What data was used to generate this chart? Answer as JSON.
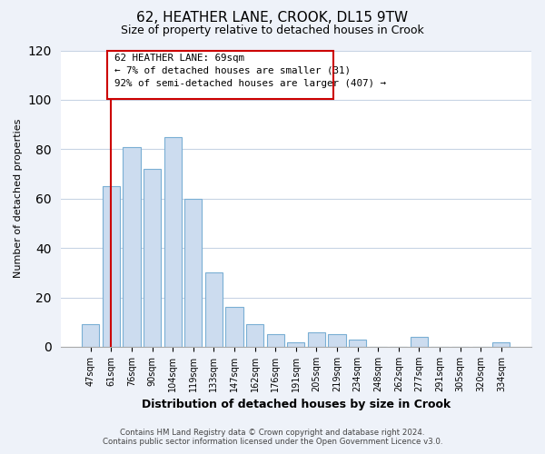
{
  "title": "62, HEATHER LANE, CROOK, DL15 9TW",
  "subtitle": "Size of property relative to detached houses in Crook",
  "xlabel": "Distribution of detached houses by size in Crook",
  "ylabel": "Number of detached properties",
  "bar_labels": [
    "47sqm",
    "61sqm",
    "76sqm",
    "90sqm",
    "104sqm",
    "119sqm",
    "133sqm",
    "147sqm",
    "162sqm",
    "176sqm",
    "191sqm",
    "205sqm",
    "219sqm",
    "234sqm",
    "248sqm",
    "262sqm",
    "277sqm",
    "291sqm",
    "305sqm",
    "320sqm",
    "334sqm"
  ],
  "bar_values": [
    9,
    65,
    81,
    72,
    85,
    60,
    30,
    16,
    9,
    5,
    2,
    6,
    5,
    3,
    0,
    0,
    4,
    0,
    0,
    0,
    2
  ],
  "bar_color": "#ccdcef",
  "bar_edge_color": "#7aafd4",
  "vline_x": 1,
  "vline_color": "#cc0000",
  "ann_line1": "62 HEATHER LANE: 69sqm",
  "ann_line2": "← 7% of detached houses are smaller (31)",
  "ann_line3": "92% of semi-detached houses are larger (407) →",
  "annotation_box_edgecolor": "#cc0000",
  "annotation_box_facecolor": "#ffffff",
  "ylim": [
    0,
    120
  ],
  "yticks": [
    0,
    20,
    40,
    60,
    80,
    100,
    120
  ],
  "footer_line1": "Contains HM Land Registry data © Crown copyright and database right 2024.",
  "footer_line2": "Contains public sector information licensed under the Open Government Licence v3.0.",
  "bg_color": "#eef2f9",
  "plot_bg_color": "#ffffff",
  "grid_color": "#c8d4e4"
}
